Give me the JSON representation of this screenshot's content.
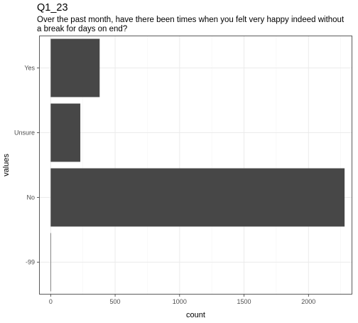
{
  "chart_data": {
    "type": "bar",
    "orientation": "horizontal",
    "title": "Q1_23",
    "subtitle": "Over the past month, have there been times when you felt very happy indeed without a break for days on end?",
    "xlabel": "count",
    "ylabel": "values",
    "categories": [
      "Yes",
      "Unsure",
      "No",
      "-99"
    ],
    "values": [
      380,
      230,
      2280,
      3
    ],
    "xlim": [
      -90,
      2340
    ],
    "xticks": [
      0,
      500,
      1000,
      1500,
      2000
    ],
    "grid": true,
    "legend": "none",
    "colors": {
      "bar": "#474747",
      "panel": "#ffffff",
      "grid_major": "#ebebeb",
      "grid_minor": "#f5f5f5",
      "border": "#333333"
    }
  }
}
